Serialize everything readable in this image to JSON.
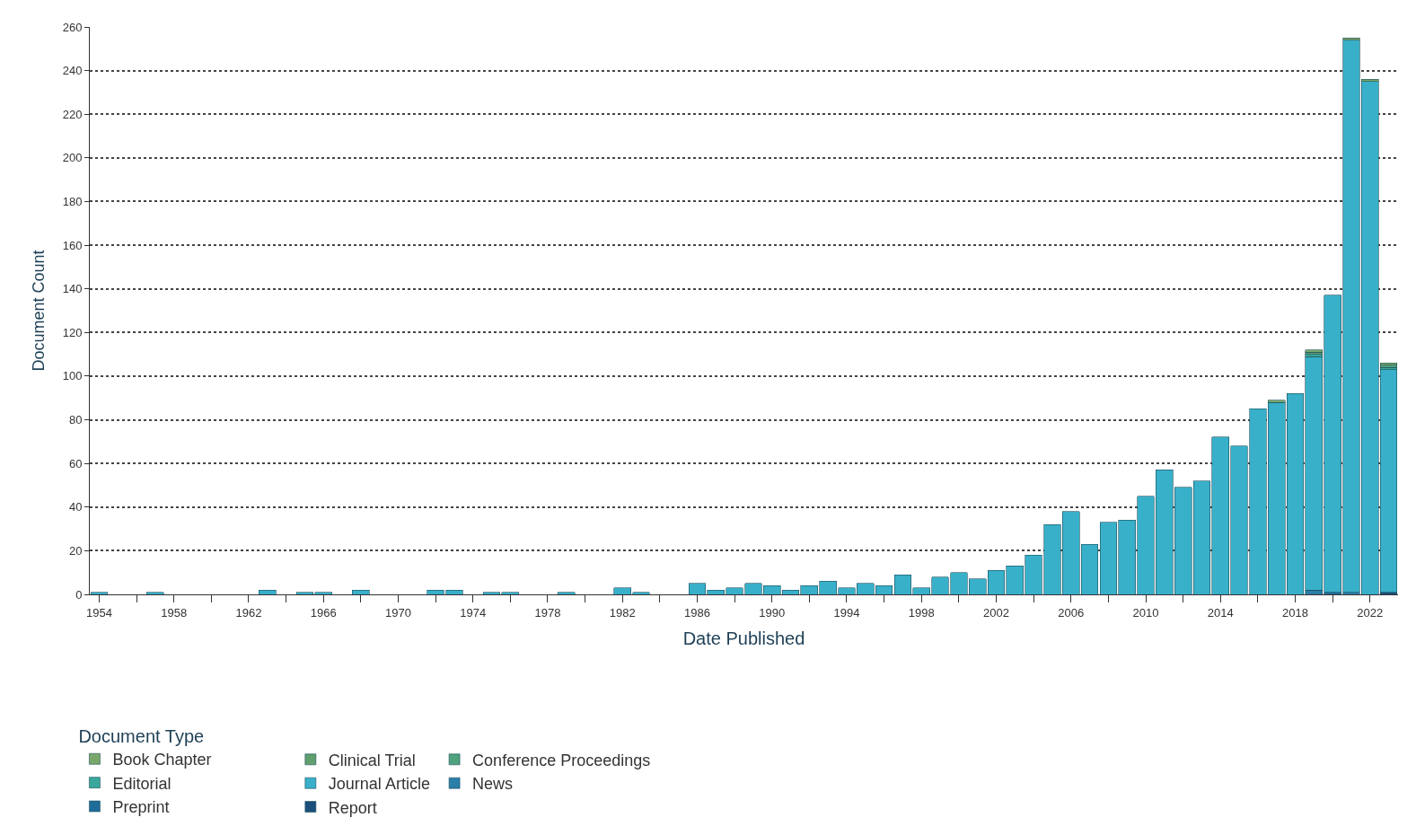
{
  "chart_data": {
    "type": "bar",
    "stacked": true,
    "xlabel": "Date Published",
    "ylabel": "Document Count",
    "legend_title": "Document Type",
    "legend": "bottom left",
    "grid": "y",
    "x": [
      1954,
      1955,
      1956,
      1957,
      1958,
      1959,
      1960,
      1961,
      1962,
      1963,
      1964,
      1965,
      1966,
      1967,
      1968,
      1969,
      1970,
      1971,
      1972,
      1973,
      1974,
      1975,
      1976,
      1977,
      1978,
      1979,
      1980,
      1981,
      1982,
      1983,
      1984,
      1985,
      1986,
      1987,
      1988,
      1989,
      1990,
      1991,
      1992,
      1993,
      1994,
      1995,
      1996,
      1997,
      1998,
      1999,
      2000,
      2001,
      2002,
      2003,
      2004,
      2005,
      2006,
      2007,
      2008,
      2009,
      2010,
      2011,
      2012,
      2013,
      2014,
      2015,
      2016,
      2017,
      2018,
      2019,
      2020,
      2021,
      2022,
      2023
    ],
    "xlim": [
      1953.5,
      2023.5
    ],
    "xticks": [
      1954,
      {
        "value": 1956,
        "label": null
      },
      1958,
      {
        "value": 1960,
        "label": null
      },
      1962,
      {
        "value": 1964,
        "label": null
      },
      1966,
      {
        "value": 1968,
        "label": null
      },
      1970,
      {
        "value": 1972,
        "label": null
      },
      1974,
      {
        "value": 1976,
        "label": null
      },
      1978,
      {
        "value": 1980,
        "label": null
      },
      1982,
      {
        "value": 1984,
        "label": null
      },
      1986,
      {
        "value": 1988,
        "label": null
      },
      1990,
      {
        "value": 1992,
        "label": null
      },
      1994,
      {
        "value": 1996,
        "label": null
      },
      1998,
      {
        "value": 2000,
        "label": null
      },
      2002,
      {
        "value": 2004,
        "label": null
      },
      2006,
      {
        "value": 2008,
        "label": null
      },
      2010,
      {
        "value": 2012,
        "label": null
      },
      2014,
      {
        "value": 2016,
        "label": null
      },
      2018,
      {
        "value": 2020,
        "label": null
      },
      2022
    ],
    "ylim": [
      0,
      260
    ],
    "yticks": [
      0,
      20,
      40,
      60,
      80,
      100,
      120,
      140,
      160,
      180,
      200,
      220,
      240,
      260
    ],
    "series": [
      {
        "name": "Report",
        "color": "#1a4f7a",
        "values": [
          null,
          null,
          null,
          null,
          null,
          null,
          null,
          null,
          null,
          null,
          null,
          null,
          null,
          null,
          null,
          null,
          null,
          null,
          null,
          null,
          null,
          null,
          null,
          null,
          null,
          null,
          null,
          null,
          null,
          null,
          null,
          null,
          null,
          null,
          null,
          null,
          null,
          null,
          null,
          null,
          null,
          null,
          null,
          null,
          null,
          null,
          null,
          null,
          null,
          null,
          null,
          null,
          null,
          null,
          null,
          null,
          null,
          null,
          null,
          null,
          null,
          null,
          null,
          null,
          null,
          null,
          null,
          null,
          null,
          1
        ]
      },
      {
        "name": "Preprint",
        "color": "#1f6c9a",
        "values": [
          null,
          null,
          null,
          null,
          null,
          null,
          null,
          null,
          null,
          null,
          null,
          null,
          null,
          null,
          null,
          null,
          null,
          null,
          null,
          null,
          null,
          null,
          null,
          null,
          null,
          null,
          null,
          null,
          null,
          null,
          null,
          null,
          null,
          null,
          null,
          null,
          null,
          null,
          null,
          null,
          null,
          null,
          null,
          null,
          null,
          null,
          null,
          null,
          null,
          null,
          null,
          null,
          null,
          null,
          null,
          null,
          null,
          null,
          null,
          null,
          null,
          null,
          null,
          null,
          null,
          null,
          1,
          null,
          null,
          null
        ]
      },
      {
        "name": "News",
        "color": "#2a7ea8",
        "values": [
          null,
          null,
          null,
          null,
          null,
          null,
          null,
          null,
          null,
          null,
          null,
          null,
          null,
          null,
          null,
          null,
          null,
          null,
          null,
          null,
          null,
          null,
          null,
          null,
          null,
          null,
          null,
          null,
          null,
          null,
          null,
          null,
          null,
          null,
          null,
          null,
          null,
          null,
          null,
          null,
          null,
          null,
          null,
          null,
          null,
          null,
          null,
          null,
          null,
          null,
          null,
          null,
          null,
          null,
          null,
          null,
          null,
          null,
          null,
          null,
          null,
          null,
          null,
          null,
          null,
          2,
          null,
          1,
          null,
          null
        ]
      },
      {
        "name": "Journal Article",
        "color": "#38b0c9",
        "values": [
          1,
          null,
          null,
          1,
          null,
          null,
          null,
          null,
          null,
          2,
          null,
          1,
          1,
          null,
          2,
          null,
          null,
          null,
          2,
          2,
          null,
          1,
          1,
          null,
          null,
          1,
          null,
          null,
          3,
          1,
          null,
          null,
          5,
          2,
          3,
          5,
          4,
          2,
          4,
          6,
          3,
          5,
          4,
          9,
          3,
          8,
          10,
          7,
          11,
          13,
          18,
          32,
          38,
          23,
          33,
          34,
          45,
          57,
          49,
          52,
          72,
          68,
          85,
          88,
          92,
          107,
          136,
          253,
          235,
          102
        ]
      },
      {
        "name": "Editorial",
        "color": "#3aa79c",
        "values": [
          null,
          null,
          null,
          null,
          null,
          null,
          null,
          null,
          null,
          null,
          null,
          null,
          null,
          null,
          null,
          null,
          null,
          null,
          null,
          null,
          null,
          null,
          null,
          null,
          null,
          null,
          null,
          null,
          null,
          null,
          null,
          null,
          null,
          null,
          null,
          null,
          null,
          null,
          null,
          null,
          null,
          null,
          null,
          null,
          null,
          null,
          null,
          null,
          null,
          null,
          null,
          null,
          null,
          null,
          null,
          null,
          null,
          null,
          null,
          null,
          null,
          null,
          null,
          null,
          null,
          1,
          null,
          null,
          null,
          1
        ]
      },
      {
        "name": "Conference Proceedings",
        "color": "#4ea37e",
        "values": [
          null,
          null,
          null,
          null,
          null,
          null,
          null,
          null,
          null,
          null,
          null,
          null,
          null,
          null,
          null,
          null,
          null,
          null,
          null,
          null,
          null,
          null,
          null,
          null,
          null,
          null,
          null,
          null,
          null,
          null,
          null,
          null,
          null,
          null,
          null,
          null,
          null,
          null,
          null,
          null,
          null,
          null,
          null,
          null,
          null,
          null,
          null,
          null,
          null,
          null,
          null,
          null,
          null,
          null,
          null,
          null,
          null,
          null,
          null,
          null,
          null,
          null,
          null,
          null,
          null,
          null,
          null,
          null,
          null,
          1
        ]
      },
      {
        "name": "Clinical Trial",
        "color": "#5fa06e",
        "values": [
          null,
          null,
          null,
          null,
          null,
          null,
          null,
          null,
          null,
          null,
          null,
          null,
          null,
          null,
          null,
          null,
          null,
          null,
          null,
          null,
          null,
          null,
          null,
          null,
          null,
          null,
          null,
          null,
          null,
          null,
          null,
          null,
          null,
          null,
          null,
          null,
          null,
          null,
          null,
          null,
          null,
          null,
          null,
          null,
          null,
          null,
          null,
          null,
          null,
          null,
          null,
          null,
          null,
          null,
          null,
          null,
          null,
          null,
          null,
          null,
          null,
          null,
          null,
          null,
          null,
          1,
          null,
          null,
          null,
          null
        ]
      },
      {
        "name": "Book Chapter",
        "color": "#7aa86a",
        "values": [
          null,
          null,
          null,
          null,
          null,
          null,
          null,
          null,
          null,
          null,
          null,
          null,
          null,
          null,
          null,
          null,
          null,
          null,
          null,
          null,
          null,
          null,
          null,
          null,
          null,
          null,
          null,
          null,
          null,
          null,
          null,
          null,
          null,
          null,
          null,
          null,
          null,
          null,
          null,
          null,
          null,
          null,
          null,
          null,
          null,
          null,
          null,
          null,
          null,
          null,
          null,
          null,
          null,
          null,
          null,
          null,
          null,
          null,
          null,
          null,
          null,
          null,
          null,
          1,
          null,
          1,
          null,
          1,
          1,
          1
        ]
      }
    ]
  }
}
